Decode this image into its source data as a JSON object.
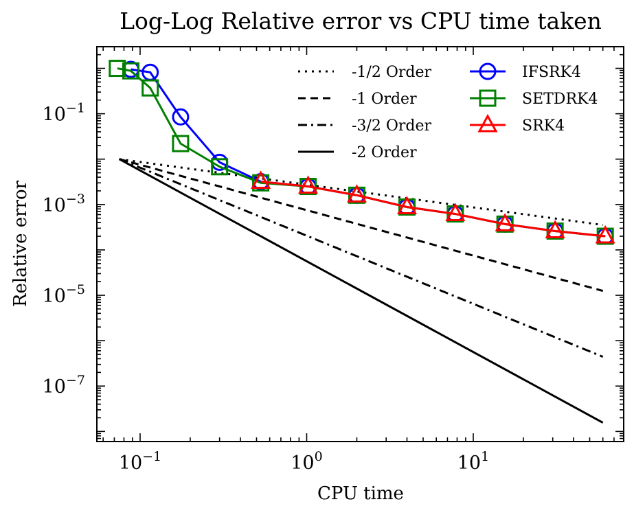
{
  "chart_data": {
    "type": "line",
    "title": "Log-Log Relative error vs CPU time taken",
    "xlabel": "CPU time",
    "ylabel": "Relative error",
    "xscale": "log",
    "yscale": "log",
    "xlim": [
      0.055,
      80
    ],
    "ylim": [
      6e-09,
      3.0
    ],
    "x_ticks": [
      {
        "value": 0.1,
        "base": "10",
        "exp": "−1"
      },
      {
        "value": 1,
        "base": "10",
        "exp": "0"
      },
      {
        "value": 10,
        "base": "10",
        "exp": "1"
      }
    ],
    "y_ticks": [
      {
        "value": 0.1,
        "base": "10",
        "exp": "−1"
      },
      {
        "value": 0.001,
        "base": "10",
        "exp": "−3"
      },
      {
        "value": 1e-05,
        "base": "10",
        "exp": "−5"
      },
      {
        "value": 1e-07,
        "base": "10",
        "exp": "−7"
      }
    ],
    "reference_lines": [
      {
        "name": "-1/2 Order",
        "slope": -0.5,
        "style": "dotted",
        "x": [
          0.075,
          60
        ],
        "y0": 0.01,
        "color": "#000000"
      },
      {
        "name": "-1 Order",
        "slope": -1,
        "style": "dashed",
        "x": [
          0.075,
          60
        ],
        "y0": 0.01,
        "color": "#000000"
      },
      {
        "name": "-3/2 Order",
        "slope": -1.5,
        "style": "dashdot",
        "x": [
          0.075,
          60
        ],
        "y0": 0.01,
        "color": "#000000"
      },
      {
        "name": "-2 Order",
        "slope": -2,
        "style": "solid",
        "x": [
          0.075,
          60
        ],
        "y0": 0.01,
        "color": "#000000"
      }
    ],
    "series": [
      {
        "name": "IFSRK4",
        "color": "#0000ff",
        "marker": "circle",
        "x": [
          0.088,
          0.115,
          0.175,
          0.3,
          0.53,
          1.02,
          2.0,
          4.0,
          7.8,
          15.5,
          31,
          62
        ],
        "y": [
          0.95,
          0.82,
          0.085,
          0.0085,
          0.0032,
          0.0025,
          0.0016,
          0.00088,
          0.00062,
          0.00037,
          0.00026,
          0.0002
        ]
      },
      {
        "name": "SETDRK4",
        "color": "#008000",
        "marker": "square",
        "x": [
          0.073,
          0.088,
          0.115,
          0.175,
          0.3,
          0.53,
          1.02,
          2.0,
          4.0,
          7.8,
          15.5,
          31,
          62
        ],
        "y": [
          1.0,
          0.88,
          0.37,
          0.022,
          0.0068,
          0.003,
          0.0025,
          0.0016,
          0.00088,
          0.00062,
          0.00037,
          0.00026,
          0.0002
        ]
      },
      {
        "name": "SRK4",
        "color": "#ff0000",
        "marker": "triangle",
        "x": [
          0.53,
          1.02,
          2.0,
          4.0,
          7.8,
          15.5,
          31,
          62
        ],
        "y": [
          0.0032,
          0.0025,
          0.0016,
          0.00088,
          0.00062,
          0.00037,
          0.00026,
          0.0002
        ]
      }
    ],
    "legend_position": "top-right"
  }
}
